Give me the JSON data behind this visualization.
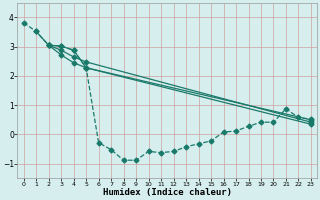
{
  "xlabel": "Humidex (Indice chaleur)",
  "background_color": "#d7eeee",
  "grid_color": "#c0dede",
  "line_color": "#1a7a6a",
  "xlim": [
    -0.5,
    23.5
  ],
  "ylim": [
    -1.5,
    4.5
  ],
  "xticks": [
    0,
    1,
    2,
    3,
    4,
    5,
    6,
    7,
    8,
    9,
    10,
    11,
    12,
    13,
    14,
    15,
    16,
    17,
    18,
    19,
    20,
    21,
    22,
    23
  ],
  "yticks": [
    -1,
    0,
    1,
    2,
    3,
    4
  ],
  "line1_x": [
    0,
    1,
    2,
    3,
    4,
    5,
    6,
    7,
    8,
    9,
    10,
    11,
    12,
    13,
    14,
    15,
    16,
    17,
    18,
    19,
    20,
    21,
    22,
    23
  ],
  "line1_y": [
    3.82,
    3.52,
    3.05,
    3.02,
    2.88,
    2.28,
    -0.28,
    -0.52,
    -0.88,
    -0.88,
    -0.58,
    -0.62,
    -0.58,
    -0.42,
    -0.32,
    -0.22,
    0.08,
    0.12,
    0.28,
    0.42,
    0.42,
    0.88,
    0.58,
    0.52
  ],
  "line2_x": [
    1,
    2,
    3,
    4,
    5,
    23
  ],
  "line2_y": [
    3.52,
    3.05,
    3.02,
    2.88,
    2.28,
    0.5
  ],
  "line3_x": [
    2,
    3,
    4,
    5,
    23
  ],
  "line3_y": [
    3.05,
    2.88,
    2.65,
    2.48,
    0.42
  ],
  "line4_x": [
    2,
    3,
    4,
    5,
    23
  ],
  "line4_y": [
    3.05,
    2.72,
    2.45,
    2.28,
    0.35
  ],
  "markersize": 2.5,
  "linewidth": 0.9
}
